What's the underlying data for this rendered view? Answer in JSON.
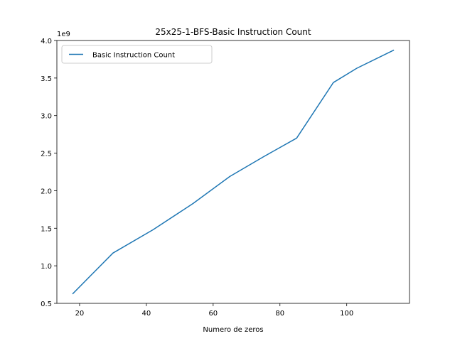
{
  "chart_data": {
    "type": "line",
    "title": "25x25-1-BFS-Basic Instruction Count",
    "xlabel": "Numero de zeros",
    "ylabel": "",
    "y_scale_label": "1e9",
    "xlim": [
      13.2,
      118.8
    ],
    "ylim": [
      0.5,
      4.0
    ],
    "x_ticks": [
      20,
      40,
      60,
      80,
      100
    ],
    "y_ticks": [
      0.5,
      1.0,
      1.5,
      2.0,
      2.5,
      3.0,
      3.5,
      4.0
    ],
    "x_tick_labels": [
      "20",
      "40",
      "60",
      "80",
      "100"
    ],
    "y_tick_labels": [
      "0.5",
      "1.0",
      "1.5",
      "2.0",
      "2.5",
      "3.0",
      "3.5",
      "4.0"
    ],
    "grid": false,
    "legend_position": "upper-left",
    "series": [
      {
        "name": "Basic Instruction Count",
        "color": "#1f77b4",
        "x": [
          18,
          30,
          42,
          54,
          65,
          75,
          85,
          96,
          103,
          114
        ],
        "y": [
          0.63,
          1.17,
          1.48,
          1.83,
          2.19,
          2.45,
          2.7,
          3.44,
          3.63,
          3.87
        ]
      }
    ]
  }
}
